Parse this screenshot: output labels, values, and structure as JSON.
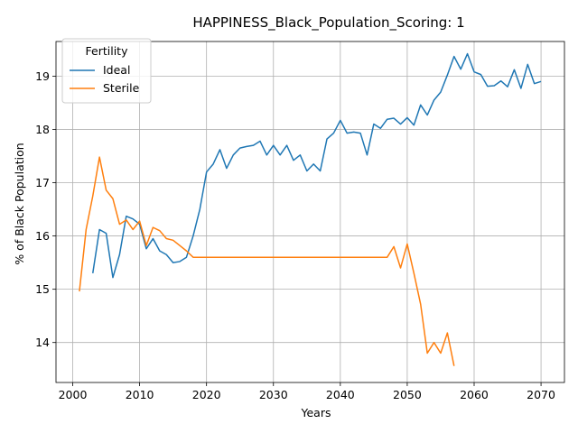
{
  "chart_data": {
    "type": "line",
    "title": "HAPPINESS_Black_Population_Scoring: 1",
    "xlabel": "Years",
    "ylabel": "% of Black Population",
    "xlim": [
      1997.5,
      2073.5
    ],
    "ylim": [
      13.25,
      19.65
    ],
    "xticks": [
      2000,
      2010,
      2020,
      2030,
      2040,
      2050,
      2060,
      2070
    ],
    "yticks": [
      14,
      15,
      16,
      17,
      18,
      19
    ],
    "grid": true,
    "legend": {
      "title": "Fertility",
      "placement": "upper-left"
    },
    "series": [
      {
        "name": "Ideal",
        "color": "#1f77b4",
        "x": [
          2003,
          2004,
          2005,
          2006,
          2007,
          2008,
          2009,
          2010,
          2011,
          2012,
          2013,
          2014,
          2015,
          2016,
          2017,
          2018,
          2019,
          2020,
          2021,
          2022,
          2023,
          2024,
          2025,
          2026,
          2027,
          2028,
          2029,
          2030,
          2031,
          2032,
          2033,
          2034,
          2035,
          2036,
          2037,
          2038,
          2039,
          2040,
          2041,
          2042,
          2043,
          2044,
          2045,
          2046,
          2047,
          2048,
          2049,
          2050,
          2051,
          2052,
          2053,
          2054,
          2055,
          2056,
          2057,
          2058,
          2059,
          2060,
          2061,
          2062,
          2063,
          2064,
          2065,
          2066,
          2067,
          2068,
          2069,
          2070
        ],
        "y": [
          15.3,
          16.12,
          16.05,
          15.22,
          15.65,
          16.37,
          16.32,
          16.22,
          15.76,
          15.95,
          15.72,
          15.65,
          15.5,
          15.52,
          15.6,
          16.0,
          16.5,
          17.2,
          17.35,
          17.62,
          17.27,
          17.52,
          17.65,
          17.68,
          17.7,
          17.78,
          17.52,
          17.7,
          17.52,
          17.7,
          17.42,
          17.52,
          17.22,
          17.35,
          17.22,
          17.82,
          17.93,
          18.17,
          17.93,
          17.95,
          17.93,
          17.52,
          18.1,
          18.02,
          18.19,
          18.21,
          18.1,
          18.22,
          18.08,
          18.46,
          18.27,
          18.55,
          18.7,
          19.02,
          19.37,
          19.13,
          19.42,
          19.08,
          19.03,
          18.81,
          18.82,
          18.91,
          18.8,
          19.12,
          18.77,
          19.22,
          18.86,
          18.9
        ]
      },
      {
        "name": "Sterile",
        "color": "#ff7f0e",
        "x": [
          2001,
          2002,
          2003,
          2004,
          2005,
          2006,
          2007,
          2008,
          2009,
          2010,
          2011,
          2012,
          2013,
          2014,
          2015,
          2016,
          2017,
          2018,
          2019,
          2020,
          2021,
          2022,
          2023,
          2024,
          2025,
          2026,
          2027,
          2028,
          2029,
          2030,
          2031,
          2032,
          2033,
          2034,
          2035,
          2036,
          2037,
          2038,
          2039,
          2040,
          2041,
          2042,
          2043,
          2044,
          2045,
          2046,
          2047,
          2048,
          2049,
          2050,
          2051,
          2052,
          2053,
          2054,
          2055,
          2056,
          2057
        ],
        "y": [
          14.96,
          16.12,
          16.75,
          17.48,
          16.86,
          16.7,
          16.22,
          16.3,
          16.12,
          16.28,
          15.82,
          16.16,
          16.1,
          15.95,
          15.92,
          15.82,
          15.72,
          15.6,
          15.6,
          15.6,
          15.6,
          15.6,
          15.6,
          15.6,
          15.6,
          15.6,
          15.6,
          15.6,
          15.6,
          15.6,
          15.6,
          15.6,
          15.6,
          15.6,
          15.6,
          15.6,
          15.6,
          15.6,
          15.6,
          15.6,
          15.6,
          15.6,
          15.6,
          15.6,
          15.6,
          15.6,
          15.6,
          15.8,
          15.4,
          15.85,
          15.3,
          14.72,
          13.8,
          14.0,
          13.8,
          14.18,
          13.56
        ]
      }
    ]
  }
}
